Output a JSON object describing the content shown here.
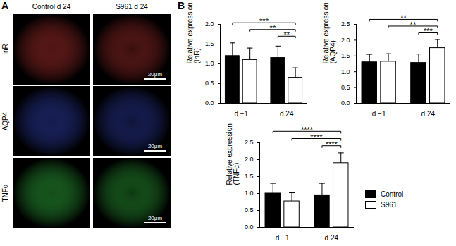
{
  "panel_a": {
    "panel_label": "A",
    "columns": [
      "Control d 24",
      "S961 d 24"
    ],
    "rows": [
      {
        "label": "InR",
        "color": "#d83a3a"
      },
      {
        "label": "AQP4",
        "color": "#3a4fd8"
      },
      {
        "label": "TNFα",
        "color": "#3ad84a"
      }
    ],
    "scale_bar": "20μm"
  },
  "panel_b_label": "B",
  "chart_data": [
    {
      "type": "bar",
      "ylabel": "Relative expression\n(InR)",
      "categories": [
        "d −1",
        "d 24"
      ],
      "series": [
        {
          "name": "Control",
          "color": "#000000",
          "values": [
            1.2,
            1.15
          ],
          "errors": [
            0.33,
            0.3
          ]
        },
        {
          "name": "S961",
          "color": "#ffffff",
          "values": [
            1.1,
            0.65
          ],
          "errors": [
            0.3,
            0.25
          ]
        }
      ],
      "ylim": [
        0,
        2.0
      ],
      "yticks": [
        {
          "value": 0,
          "label": "0.0"
        },
        0.5,
        {
          "value": 1,
          "label": "1.0"
        },
        1.5,
        {
          "value": 2,
          "label": "2.0"
        }
      ],
      "annotations": [
        {
          "from": [
            "d −1",
            "Control"
          ],
          "to": [
            "d 24",
            "S961"
          ],
          "label": "***"
        },
        {
          "from": [
            "d −1",
            "S961"
          ],
          "to": [
            "d 24",
            "S961"
          ],
          "label": "**"
        },
        {
          "from": [
            "d 24",
            "Control"
          ],
          "to": [
            "d 24",
            "S961"
          ],
          "label": "**"
        }
      ]
    },
    {
      "type": "bar",
      "ylabel": "Relative expression\n(AQP4)",
      "categories": [
        "d −1",
        "d 24"
      ],
      "series": [
        {
          "name": "Control",
          "color": "#000000",
          "values": [
            1.3,
            1.28
          ],
          "errors": [
            0.25,
            0.28
          ]
        },
        {
          "name": "S961",
          "color": "#ffffff",
          "values": [
            1.32,
            1.75
          ],
          "errors": [
            0.25,
            0.27
          ]
        }
      ],
      "ylim": [
        0,
        2.5
      ],
      "yticks": [
        {
          "value": 0,
          "label": "0.0"
        },
        0.5,
        {
          "value": 1,
          "label": "1.0"
        },
        1.5,
        {
          "value": 2,
          "label": "2.0"
        },
        2.5
      ],
      "annotations": [
        {
          "from": [
            "d −1",
            "Control"
          ],
          "to": [
            "d 24",
            "S961"
          ],
          "label": "**"
        },
        {
          "from": [
            "d −1",
            "S961"
          ],
          "to": [
            "d 24",
            "S961"
          ],
          "label": "**"
        },
        {
          "from": [
            "d 24",
            "Control"
          ],
          "to": [
            "d 24",
            "S961"
          ],
          "label": "***"
        }
      ]
    },
    {
      "type": "bar",
      "ylabel": "Relative expression\n(TNFα)",
      "categories": [
        "d −1",
        "d 24"
      ],
      "series": [
        {
          "name": "Control",
          "color": "#000000",
          "values": [
            1.0,
            0.95
          ],
          "errors": [
            0.3,
            0.35
          ]
        },
        {
          "name": "S961",
          "color": "#ffffff",
          "values": [
            0.77,
            1.9
          ],
          "errors": [
            0.25,
            0.3
          ]
        }
      ],
      "ylim": [
        0,
        2.5
      ],
      "yticks": [
        {
          "value": 0,
          "label": "0.0"
        },
        0.5,
        {
          "value": 1,
          "label": "1.0"
        },
        1.5,
        {
          "value": 2,
          "label": "2.0"
        },
        2.5
      ],
      "legend": "right",
      "annotations": [
        {
          "from": [
            "d −1",
            "Control"
          ],
          "to": [
            "d 24",
            "S961"
          ],
          "label": "****"
        },
        {
          "from": [
            "d −1",
            "S961"
          ],
          "to": [
            "d 24",
            "S961"
          ],
          "label": "****"
        },
        {
          "from": [
            "d 24",
            "Control"
          ],
          "to": [
            "d 24",
            "S961"
          ],
          "label": "****"
        }
      ]
    }
  ]
}
